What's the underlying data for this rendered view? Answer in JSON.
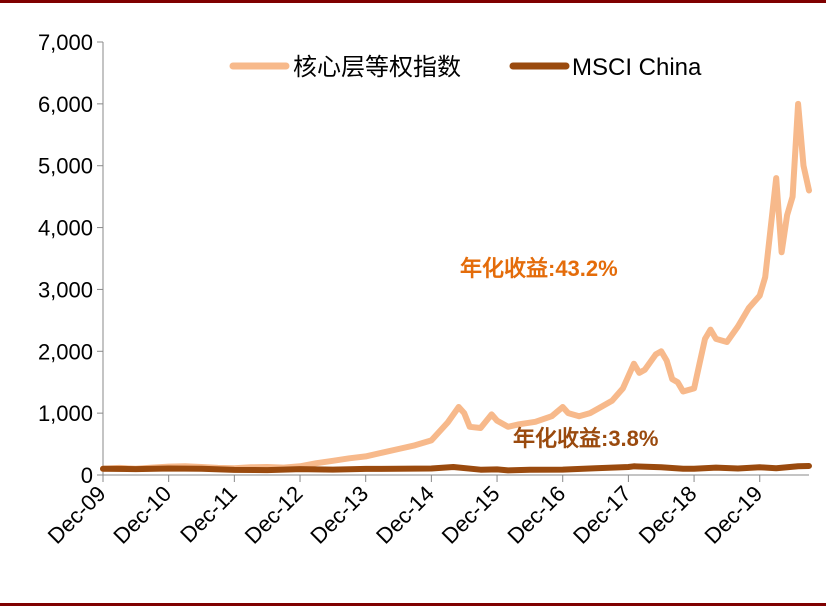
{
  "colors": {
    "frame": "#7f0000"
  },
  "chart_data": {
    "type": "line",
    "xlabel": "",
    "ylabel": "",
    "ylim": [
      0,
      7000
    ],
    "yticks": [
      0,
      1000,
      2000,
      3000,
      4000,
      5000,
      6000,
      7000
    ],
    "ytick_labels": [
      "0",
      "1,000",
      "2,000",
      "3,000",
      "4,000",
      "5,000",
      "6,000",
      "7,000"
    ],
    "xlim": [
      "2009-12",
      "2020-09"
    ],
    "xtick_labels": [
      "Dec-09",
      "Dec-10",
      "Dec-11",
      "Dec-12",
      "Dec-13",
      "Dec-14",
      "Dec-15",
      "Dec-16",
      "Dec-17",
      "Dec-18",
      "Dec-19"
    ],
    "xtick_dates": [
      "2009-12",
      "2010-12",
      "2011-12",
      "2012-12",
      "2013-12",
      "2014-12",
      "2015-12",
      "2016-12",
      "2017-12",
      "2018-12",
      "2019-12"
    ],
    "grid": false,
    "legend_position": "top",
    "series": [
      {
        "name": "核心层等权指数",
        "color": "#f7b98b",
        "points": [
          [
            "2009-12",
            100
          ],
          [
            "2010-03",
            115
          ],
          [
            "2010-06",
            100
          ],
          [
            "2010-09",
            120
          ],
          [
            "2010-12",
            135
          ],
          [
            "2011-03",
            140
          ],
          [
            "2011-06",
            130
          ],
          [
            "2011-09",
            115
          ],
          [
            "2011-12",
            110
          ],
          [
            "2012-03",
            125
          ],
          [
            "2012-06",
            130
          ],
          [
            "2012-09",
            120
          ],
          [
            "2012-12",
            140
          ],
          [
            "2013-03",
            190
          ],
          [
            "2013-06",
            230
          ],
          [
            "2013-09",
            270
          ],
          [
            "2013-12",
            300
          ],
          [
            "2014-03",
            360
          ],
          [
            "2014-06",
            420
          ],
          [
            "2014-09",
            480
          ],
          [
            "2014-12",
            560
          ],
          [
            "2015-03",
            850
          ],
          [
            "2015-05",
            1100
          ],
          [
            "2015-06",
            1000
          ],
          [
            "2015-07",
            780
          ],
          [
            "2015-09",
            760
          ],
          [
            "2015-11",
            980
          ],
          [
            "2015-12",
            880
          ],
          [
            "2016-02",
            780
          ],
          [
            "2016-04",
            820
          ],
          [
            "2016-07",
            860
          ],
          [
            "2016-10",
            950
          ],
          [
            "2016-12",
            1100
          ],
          [
            "2017-01",
            1000
          ],
          [
            "2017-03",
            950
          ],
          [
            "2017-05",
            1000
          ],
          [
            "2017-07",
            1100
          ],
          [
            "2017-09",
            1200
          ],
          [
            "2017-11",
            1400
          ],
          [
            "2018-01",
            1800
          ],
          [
            "2018-02",
            1650
          ],
          [
            "2018-03",
            1700
          ],
          [
            "2018-05",
            1950
          ],
          [
            "2018-06",
            2000
          ],
          [
            "2018-07",
            1850
          ],
          [
            "2018-08",
            1550
          ],
          [
            "2018-09",
            1500
          ],
          [
            "2018-10",
            1350
          ],
          [
            "2018-12",
            1400
          ],
          [
            "2019-01",
            1800
          ],
          [
            "2019-02",
            2200
          ],
          [
            "2019-03",
            2350
          ],
          [
            "2019-04",
            2200
          ],
          [
            "2019-06",
            2150
          ],
          [
            "2019-08",
            2400
          ],
          [
            "2019-10",
            2700
          ],
          [
            "2019-12",
            2900
          ],
          [
            "2020-01",
            3200
          ],
          [
            "2020-02",
            4000
          ],
          [
            "2020-03",
            4800
          ],
          [
            "2020-04",
            3600
          ],
          [
            "2020-05",
            4200
          ],
          [
            "2020-06",
            4500
          ],
          [
            "2020-07",
            6000
          ],
          [
            "2020-08",
            5000
          ],
          [
            "2020-09",
            4600
          ]
        ]
      },
      {
        "name": "MSCI China",
        "color": "#9a4a0e",
        "points": [
          [
            "2009-12",
            100
          ],
          [
            "2010-06",
            95
          ],
          [
            "2010-12",
            105
          ],
          [
            "2011-06",
            100
          ],
          [
            "2011-12",
            82
          ],
          [
            "2012-06",
            80
          ],
          [
            "2012-12",
            95
          ],
          [
            "2013-06",
            88
          ],
          [
            "2013-12",
            98
          ],
          [
            "2014-06",
            100
          ],
          [
            "2014-12",
            105
          ],
          [
            "2015-04",
            130
          ],
          [
            "2015-09",
            85
          ],
          [
            "2015-12",
            90
          ],
          [
            "2016-02",
            75
          ],
          [
            "2016-06",
            85
          ],
          [
            "2016-12",
            88
          ],
          [
            "2017-06",
            110
          ],
          [
            "2017-12",
            130
          ],
          [
            "2018-01",
            140
          ],
          [
            "2018-06",
            125
          ],
          [
            "2018-10",
            100
          ],
          [
            "2018-12",
            100
          ],
          [
            "2019-04",
            120
          ],
          [
            "2019-08",
            105
          ],
          [
            "2019-12",
            125
          ],
          [
            "2020-03",
            110
          ],
          [
            "2020-07",
            140
          ],
          [
            "2020-09",
            145
          ]
        ]
      }
    ],
    "annotations": [
      {
        "text": "年化收益:43.2%",
        "color": "#e46c0a"
      },
      {
        "text": "年化收益:3.8%",
        "color": "#9a4a0e"
      }
    ]
  }
}
